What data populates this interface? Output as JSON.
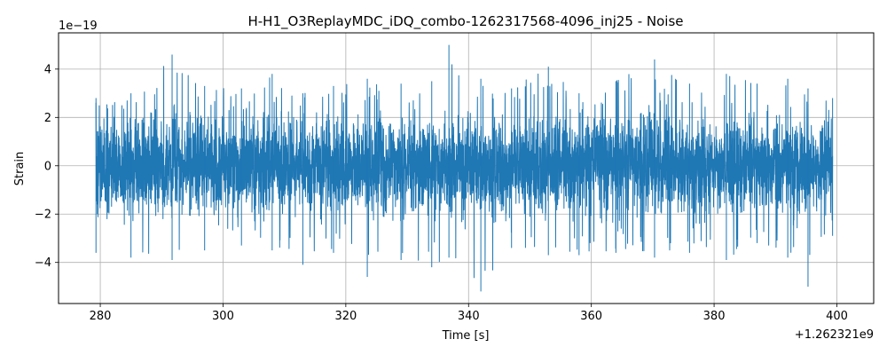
{
  "chart_data": {
    "type": "line",
    "title": "H-H1_O3ReplayMDC_iDQ_combo-1262317568-4096_inj25 - Noise",
    "xlabel": "Time [s]",
    "ylabel": "Strain",
    "x_offset_label": "+1.262321e9",
    "y_scale_label": "1e−19",
    "xlim": [
      273.2,
      406.0
    ],
    "ylim": [
      -5.7,
      5.5
    ],
    "x_range": [
      279.3,
      399.3
    ],
    "x_ticks": [
      280,
      300,
      320,
      340,
      360,
      380,
      400
    ],
    "x_tick_labels": [
      "280",
      "300",
      "320",
      "340",
      "360",
      "380",
      "400"
    ],
    "y_ticks": [
      -4,
      -2,
      0,
      2,
      4
    ],
    "y_tick_labels": [
      "−4",
      "−2",
      "0",
      "2",
      "4"
    ],
    "grid": true,
    "line_color": "#1f77b4",
    "series": [
      {
        "envelope_points": [
          {
            "x": 279.3,
            "max": 2.8,
            "min": -3.6
          },
          {
            "x": 285.0,
            "max": 3.0,
            "min": -3.8
          },
          {
            "x": 291.7,
            "max": 4.6,
            "min": -3.9
          },
          {
            "x": 297.0,
            "max": 3.3,
            "min": -3.5
          },
          {
            "x": 303.0,
            "max": 3.2,
            "min": -3.3
          },
          {
            "x": 308.0,
            "max": 3.8,
            "min": -3.5
          },
          {
            "x": 313.0,
            "max": 3.0,
            "min": -4.1
          },
          {
            "x": 318.0,
            "max": 3.3,
            "min": -3.6
          },
          {
            "x": 323.5,
            "max": 3.6,
            "min": -4.6
          },
          {
            "x": 329.0,
            "max": 3.4,
            "min": -3.9
          },
          {
            "x": 334.0,
            "max": 3.5,
            "min": -4.2
          },
          {
            "x": 336.8,
            "max": 5.0,
            "min": -3.8
          },
          {
            "x": 342.0,
            "max": 3.6,
            "min": -5.2
          },
          {
            "x": 347.0,
            "max": 3.2,
            "min": -3.4
          },
          {
            "x": 353.0,
            "max": 4.1,
            "min": -3.7
          },
          {
            "x": 358.0,
            "max": 3.0,
            "min": -3.7
          },
          {
            "x": 364.0,
            "max": 3.5,
            "min": -3.6
          },
          {
            "x": 370.3,
            "max": 4.4,
            "min": -3.8
          },
          {
            "x": 376.0,
            "max": 3.4,
            "min": -3.6
          },
          {
            "x": 382.0,
            "max": 3.8,
            "min": -3.9
          },
          {
            "x": 387.0,
            "max": 3.4,
            "min": -3.2
          },
          {
            "x": 392.0,
            "max": 3.6,
            "min": -3.8
          },
          {
            "x": 395.3,
            "max": 3.2,
            "min": -5.0
          },
          {
            "x": 399.3,
            "max": 2.8,
            "min": -2.9
          }
        ]
      }
    ]
  }
}
